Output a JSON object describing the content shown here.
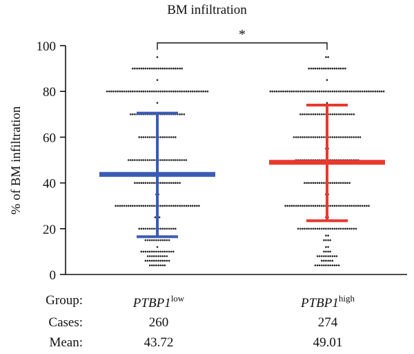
{
  "chart_data": {
    "type": "scatter",
    "subtype": "dot plot with mean and SD bars",
    "title": "BM infiltration",
    "xlabel": "",
    "ylabel": "% of BM infiltration",
    "ylim": [
      0,
      100
    ],
    "yticks": [
      0,
      20,
      40,
      60,
      80,
      100
    ],
    "significance": {
      "between": [
        "PTBP1 low",
        "PTBP1 high"
      ],
      "label": "*"
    },
    "series": [
      {
        "name": "PTBP1 low",
        "group_base": "PTBP1",
        "group_sup": "low",
        "color": "#3a5bb5",
        "mean": 43.72,
        "sd_upper": 70.5,
        "sd_lower": 16.5,
        "cases": 260,
        "point_levels": [
          {
            "y": 95,
            "n": 1
          },
          {
            "y": 90,
            "n": 24
          },
          {
            "y": 85,
            "n": 1
          },
          {
            "y": 80,
            "n": 48
          },
          {
            "y": 75,
            "n": 1
          },
          {
            "y": 70,
            "n": 26
          },
          {
            "y": 65,
            "n": 1
          },
          {
            "y": 60,
            "n": 18
          },
          {
            "y": 55,
            "n": 1
          },
          {
            "y": 50,
            "n": 28
          },
          {
            "y": 45,
            "n": 1
          },
          {
            "y": 40,
            "n": 22
          },
          {
            "y": 35,
            "n": 2
          },
          {
            "y": 30,
            "n": 40
          },
          {
            "y": 25,
            "n": 3
          },
          {
            "y": 20,
            "n": 18
          },
          {
            "y": 15,
            "n": 12
          },
          {
            "y": 12,
            "n": 1
          },
          {
            "y": 10,
            "n": 16
          },
          {
            "y": 8,
            "n": 10
          },
          {
            "y": 6,
            "n": 12
          },
          {
            "y": 4,
            "n": 8
          }
        ]
      },
      {
        "name": "PTBP1 high",
        "group_base": "PTBP1",
        "group_sup": "high",
        "color": "#e8392d",
        "mean": 49.01,
        "sd_upper": 74,
        "sd_lower": 23.5,
        "cases": 274,
        "point_levels": [
          {
            "y": 95,
            "n": 2
          },
          {
            "y": 90,
            "n": 18
          },
          {
            "y": 85,
            "n": 1
          },
          {
            "y": 80,
            "n": 54
          },
          {
            "y": 75,
            "n": 1
          },
          {
            "y": 70,
            "n": 26
          },
          {
            "y": 65,
            "n": 1
          },
          {
            "y": 60,
            "n": 32
          },
          {
            "y": 55,
            "n": 2
          },
          {
            "y": 50,
            "n": 30
          },
          {
            "y": 45,
            "n": 1
          },
          {
            "y": 40,
            "n": 22
          },
          {
            "y": 35,
            "n": 2
          },
          {
            "y": 30,
            "n": 40
          },
          {
            "y": 25,
            "n": 2
          },
          {
            "y": 20,
            "n": 28
          },
          {
            "y": 17,
            "n": 2
          },
          {
            "y": 15,
            "n": 4
          },
          {
            "y": 12,
            "n": 2
          },
          {
            "y": 10,
            "n": 4
          },
          {
            "y": 8,
            "n": 10
          },
          {
            "y": 6,
            "n": 6
          },
          {
            "y": 4,
            "n": 12
          }
        ]
      }
    ]
  },
  "table": {
    "group_label": "Group:",
    "cases_label": "Cases:",
    "mean_label": "Mean:",
    "col1": {
      "cases": "260",
      "mean": "43.72"
    },
    "col2": {
      "cases": "274",
      "mean": "49.01"
    }
  }
}
